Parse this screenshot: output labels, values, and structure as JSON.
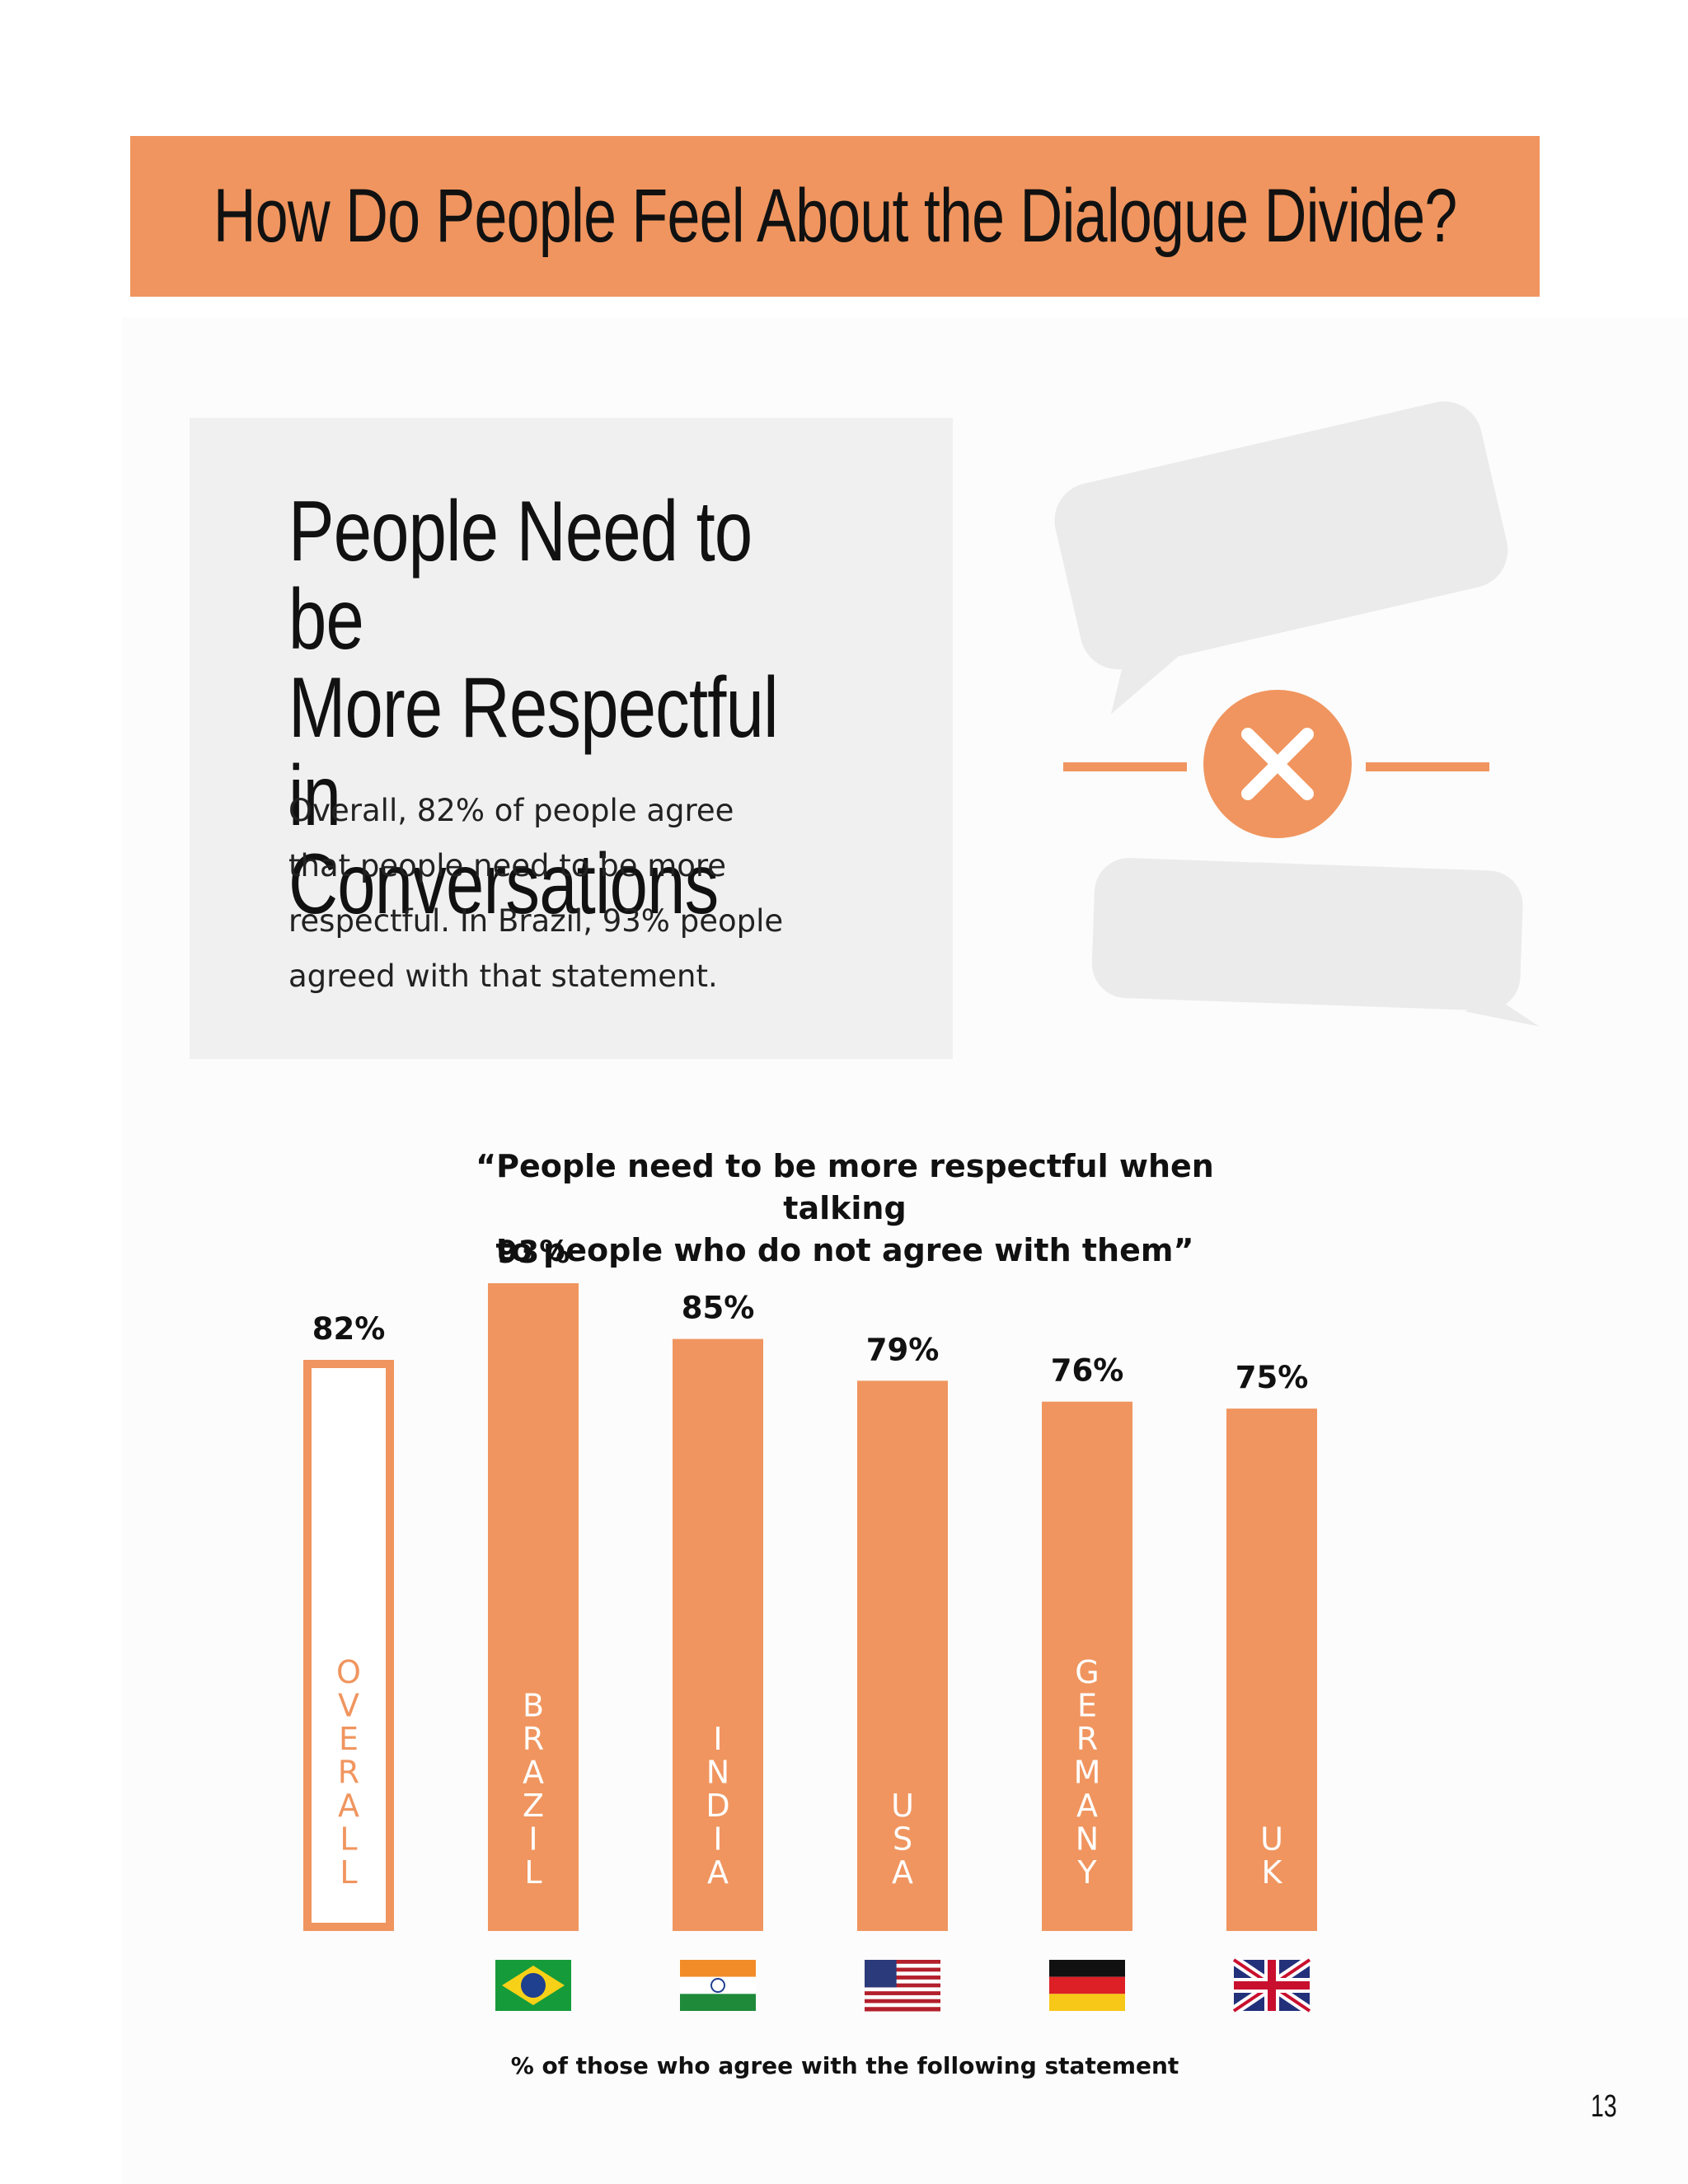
{
  "page": {
    "title": "How Do People Feel About the Dialogue Divide?",
    "heading_lines": [
      "People Need to be",
      "More Respectful in",
      "Conversations"
    ],
    "body_lines": [
      "Overall, 82% of people agree",
      "that people need to be more",
      "respectful. In Brazil, 93% people",
      "agreed with that statement."
    ],
    "page_number": "13",
    "accent_color": "#f0955f",
    "bubble_color": "#ecebec"
  },
  "chart_data": {
    "type": "bar",
    "title": "“People need to be more respectful when talking to people who do not agree with them”",
    "title_lines": [
      "“People need to be more respectful when talking",
      "to people who do not agree with them”"
    ],
    "xlabel": "% of those who agree with the following statement",
    "ylabel": "",
    "ylim": [
      0,
      100
    ],
    "grid": false,
    "categories": [
      "OVERALL",
      "BRAZIL",
      "INDIA",
      "USA",
      "GERMANY",
      "UK"
    ],
    "values": [
      82,
      93,
      85,
      79,
      76,
      75
    ],
    "value_labels": [
      "82%",
      "93%",
      "85%",
      "79%",
      "76%",
      "75%"
    ],
    "flags": [
      null,
      "brazil-flag",
      "india-flag",
      "usa-flag",
      "germany-flag",
      "uk-flag"
    ],
    "colors": {
      "bar": "#f0955f",
      "overall_fill": "#ffffff",
      "overall_outline": "#f0955f"
    }
  }
}
